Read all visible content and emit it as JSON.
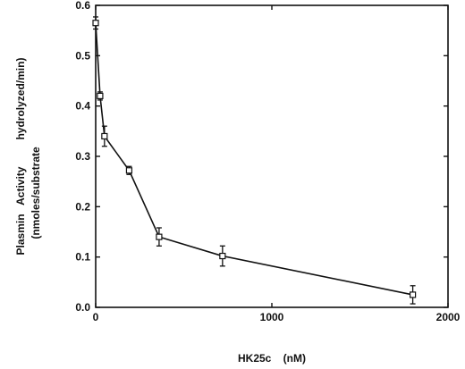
{
  "chart_data": {
    "type": "line",
    "title": "",
    "xlabel": "HK25c    (nM)",
    "ylabel_line1": "Plasmin   Activity         hydrolyzed/min)",
    "ylabel_line2": "(nmoles/substrate",
    "xlim": [
      0,
      2000
    ],
    "ylim": [
      0,
      0.6
    ],
    "xticks": [
      "0",
      "1000",
      "2000"
    ],
    "yticks": [
      "0.0",
      "0.1",
      "0.2",
      "0.3",
      "0.4",
      "0.5",
      "0.6"
    ],
    "grid": false,
    "legend": "none",
    "marker": "open-square",
    "x": [
      0,
      25,
      50,
      190,
      360,
      720,
      1800
    ],
    "y": [
      0.565,
      0.42,
      0.34,
      0.272,
      0.14,
      0.102,
      0.025
    ],
    "yerr": [
      0.012,
      0.008,
      0.02,
      0.008,
      0.018,
      0.02,
      0.018
    ]
  }
}
